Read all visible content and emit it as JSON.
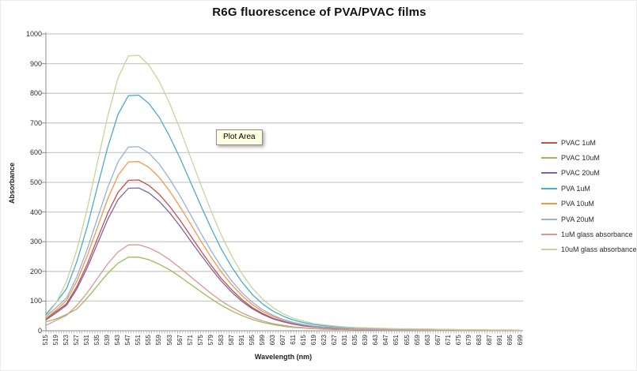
{
  "tooltip": {
    "label": "Plot Area"
  },
  "chart_data": {
    "type": "line",
    "title": "R6G fluorescence of PVA/PVAC films",
    "xlabel": "Wavelength (nm)",
    "ylabel": "Absorbance",
    "ylim": [
      0,
      1000
    ],
    "y_step": 100,
    "x_range_nm": [
      515,
      699
    ],
    "x_label_step_nm": 4,
    "grid": "horizontal",
    "legend_position": "right",
    "categories": [
      515,
      519,
      523,
      527,
      531,
      535,
      539,
      543,
      547,
      551,
      555,
      559,
      563,
      567,
      571,
      575,
      579,
      583,
      587,
      591,
      595,
      599,
      603,
      607,
      611,
      615,
      619,
      623,
      627,
      631,
      635,
      639,
      643,
      647,
      651,
      655,
      659,
      663,
      667,
      671,
      675,
      679,
      683,
      687,
      691,
      695,
      699
    ],
    "series": [
      {
        "name": "PVAC 1uM",
        "color": "#C0504D",
        "peak_nm": 548,
        "peak_value": 510,
        "values": [
          40,
          65,
          91,
          149,
          224,
          311,
          397,
          467,
          507,
          508,
          489,
          459,
          419,
          372,
          321,
          270,
          221,
          176,
          138,
          105,
          78,
          58,
          42,
          31,
          23,
          17,
          13,
          11,
          9,
          7,
          6,
          6,
          5,
          5,
          4,
          4,
          3,
          3,
          3,
          3,
          2,
          2,
          2,
          2,
          2,
          2,
          1
        ]
      },
      {
        "name": "PVAC 10uM",
        "color": "#9BBB59",
        "peak_nm": 549,
        "peak_value": 250,
        "values": [
          30,
          40,
          55,
          73,
          110,
          152,
          194,
          228,
          248,
          248,
          239,
          224,
          205,
          182,
          157,
          132,
          108,
          86,
          67,
          51,
          38,
          28,
          21,
          15,
          11,
          9,
          7,
          5,
          4,
          4,
          3,
          3,
          3,
          2,
          2,
          2,
          2,
          2,
          1,
          1,
          1,
          1,
          1,
          1,
          1,
          1,
          1
        ]
      },
      {
        "name": "PVAC 20uM",
        "color": "#8064A2",
        "peak_nm": 548,
        "peak_value": 483,
        "values": [
          36,
          60,
          86,
          141,
          212,
          294,
          376,
          442,
          480,
          481,
          464,
          435,
          397,
          352,
          304,
          256,
          210,
          167,
          130,
          99,
          74,
          55,
          40,
          30,
          22,
          16,
          13,
          10,
          8,
          7,
          6,
          5,
          5,
          4,
          4,
          3,
          3,
          3,
          2,
          2,
          2,
          2,
          2,
          1,
          1,
          1,
          1
        ]
      },
      {
        "name": "PVA 1uM",
        "color": "#4BACC6",
        "peak_nm": 549,
        "peak_value": 800,
        "values": [
          55,
          95,
          142,
          233,
          350,
          486,
          620,
          730,
          792,
          794,
          765,
          718,
          654,
          581,
          502,
          422,
          346,
          275,
          215,
          164,
          122,
          90,
          66,
          49,
          36,
          27,
          21,
          17,
          14,
          11,
          10,
          9,
          8,
          7,
          6,
          6,
          5,
          5,
          4,
          4,
          3,
          3,
          3,
          2,
          2,
          2,
          2
        ]
      },
      {
        "name": "PVA 10uM",
        "color": "#F79646",
        "peak_nm": 550,
        "peak_value": 573,
        "values": [
          42,
          70,
          102,
          167,
          252,
          349,
          446,
          524,
          569,
          570,
          550,
          516,
          470,
          417,
          361,
          303,
          248,
          198,
          155,
          118,
          88,
          65,
          48,
          35,
          26,
          20,
          15,
          12,
          10,
          8,
          7,
          6,
          6,
          5,
          5,
          4,
          3,
          3,
          3,
          3,
          2,
          2,
          2,
          2,
          2,
          2,
          1
        ]
      },
      {
        "name": "PVA 20uM",
        "color": "#95B3D7",
        "peak_nm": 549,
        "peak_value": 622,
        "values": [
          48,
          78,
          111,
          182,
          274,
          379,
          484,
          570,
          619,
          620,
          598,
          561,
          511,
          454,
          392,
          329,
          270,
          215,
          168,
          128,
          96,
          71,
          52,
          38,
          28,
          21,
          16,
          13,
          11,
          9,
          8,
          7,
          6,
          6,
          5,
          4,
          4,
          4,
          3,
          3,
          3,
          3,
          2,
          2,
          2,
          2,
          1
        ]
      },
      {
        "name": "1uM glass absorbance",
        "color": "#D99694",
        "peak_nm": 551,
        "peak_value": 292,
        "values": [
          18,
          35,
          52,
          85,
          128,
          177,
          226,
          266,
          289,
          290,
          279,
          262,
          239,
          212,
          183,
          154,
          126,
          100,
          79,
          60,
          45,
          33,
          24,
          18,
          13,
          10,
          8,
          6,
          5,
          4,
          4,
          3,
          3,
          3,
          2,
          2,
          2,
          2,
          1,
          1,
          1,
          1,
          1,
          1,
          1,
          1,
          1
        ]
      },
      {
        "name": "10uM glass absorbance",
        "color": "#C3D69B",
        "peak_nm": 549,
        "peak_value": 933,
        "values": [
          49,
          94,
          166,
          272,
          410,
          568,
          725,
          853,
          926,
          928,
          894,
          839,
          765,
          679,
          586,
          493,
          404,
          322,
          252,
          192,
          143,
          106,
          78,
          57,
          42,
          32,
          24,
          20,
          16,
          13,
          11,
          10,
          9,
          8,
          7,
          7,
          6,
          6,
          5,
          5,
          4,
          4,
          4,
          3,
          3,
          3,
          2
        ]
      }
    ]
  }
}
